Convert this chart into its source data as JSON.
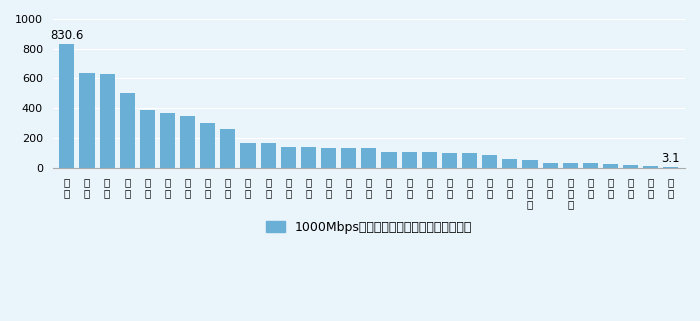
{
  "categories": [
    "江\n苏",
    "广\n东",
    "山\n东",
    "河\n南",
    "浙\n江",
    "广\n西",
    "四\n川",
    "河\n北",
    "湖\n北",
    "陕\n西",
    "江\n西",
    "贵\n州",
    "甘\n肃",
    "安\n徽",
    "福\n建",
    "湖\n南",
    "上\n海",
    "天\n津",
    "北\n京",
    "云\n南",
    "新\n疆",
    "辽\n宁",
    "重\n庆",
    "内\n蒙\n古",
    "山\n西",
    "黑\n龙\n江",
    "青\n海",
    "宁\n夏",
    "海\n南",
    "吉\n林",
    "西\n藏"
  ],
  "values": [
    830.6,
    638,
    632,
    503,
    390,
    365,
    348,
    302,
    258,
    168,
    165,
    140,
    138,
    135,
    135,
    134,
    108,
    103,
    103,
    102,
    100,
    85,
    55,
    52,
    33,
    32,
    32,
    22,
    15,
    14,
    3.1
  ],
  "bar_color": "#6aafd6",
  "label_first": "830.6",
  "label_last": "3.1",
  "ylim": [
    0,
    1000
  ],
  "yticks": [
    0,
    200,
    400,
    600,
    800,
    1000
  ],
  "legend_text": "1000Mbps及以上接入速率宽带用户（万户）",
  "background_color": "#eaf4fb"
}
